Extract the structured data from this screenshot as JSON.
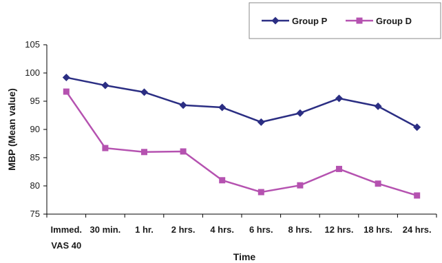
{
  "chart_data": {
    "type": "line",
    "categories": [
      "Immed.",
      "30 min.",
      "1 hr.",
      "2 hrs.",
      "4 hrs.",
      "6 hrs.",
      "8 hrs.",
      "12 hrs.",
      "18 hrs.",
      "24 hrs."
    ],
    "category_sublabels": [
      "VAS 40",
      "",
      "",
      "",
      "",
      "",
      "",
      "",
      "",
      ""
    ],
    "series": [
      {
        "name": "Group P",
        "color": "#2B2E83",
        "marker": "diamond",
        "values": [
          99.2,
          97.8,
          96.6,
          94.3,
          93.9,
          91.3,
          92.9,
          95.5,
          94.1,
          90.4
        ]
      },
      {
        "name": "Group D",
        "color": "#B552B0",
        "marker": "square",
        "values": [
          96.7,
          86.7,
          86.0,
          86.1,
          81.0,
          78.9,
          80.1,
          83.0,
          80.4,
          78.3
        ]
      }
    ],
    "xlabel": "Time",
    "ylabel": "MBP (Mean value)",
    "ylim": [
      75,
      105
    ],
    "yticks": [
      75,
      80,
      85,
      90,
      95,
      100,
      105
    ],
    "grid": false,
    "legend_position": "top-right"
  }
}
